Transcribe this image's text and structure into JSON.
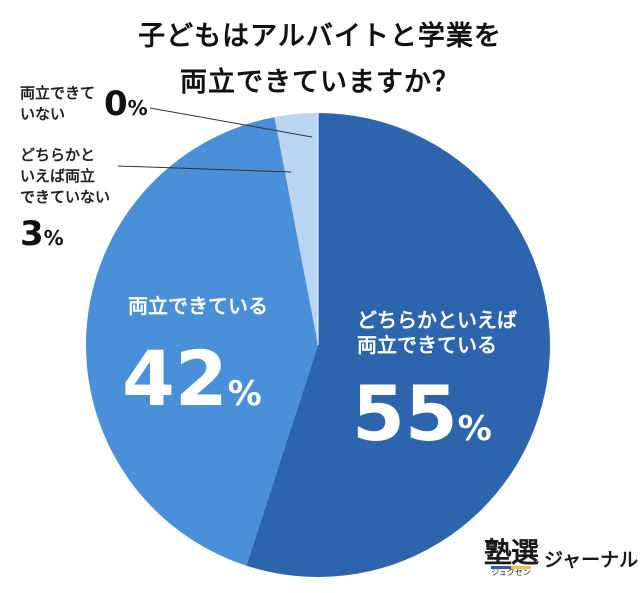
{
  "title": {
    "line1": "子どもはアルバイトと学業を",
    "line2": "両立できていますか？"
  },
  "chart_data": {
    "type": "pie",
    "title": "子どもはアルバイトと学業を両立できていますか？",
    "start_angle_deg": 0,
    "direction": "clockwise",
    "slices": [
      {
        "label_lines": [
          "どちらかといえば",
          "両立できている"
        ],
        "value": 55,
        "value_text": "55",
        "unit": "%",
        "color": "#2c64ad"
      },
      {
        "label_lines": [
          "両立できている"
        ],
        "value": 42,
        "value_text": "42",
        "unit": "%",
        "color": "#4a90d9"
      },
      {
        "label_lines": [
          "どちらかと",
          "いえば両立",
          "できていない"
        ],
        "value": 3,
        "value_text": "3",
        "unit": "%",
        "color": "#b9d5f1"
      },
      {
        "label_lines": [
          "両立できて",
          "いない"
        ],
        "value": 0,
        "value_text": "0",
        "unit": "%",
        "color": "#e3eefa"
      }
    ]
  },
  "logo": {
    "kanji": "塾選",
    "ruby": "ジュクセン",
    "text": "ジャーナル"
  }
}
